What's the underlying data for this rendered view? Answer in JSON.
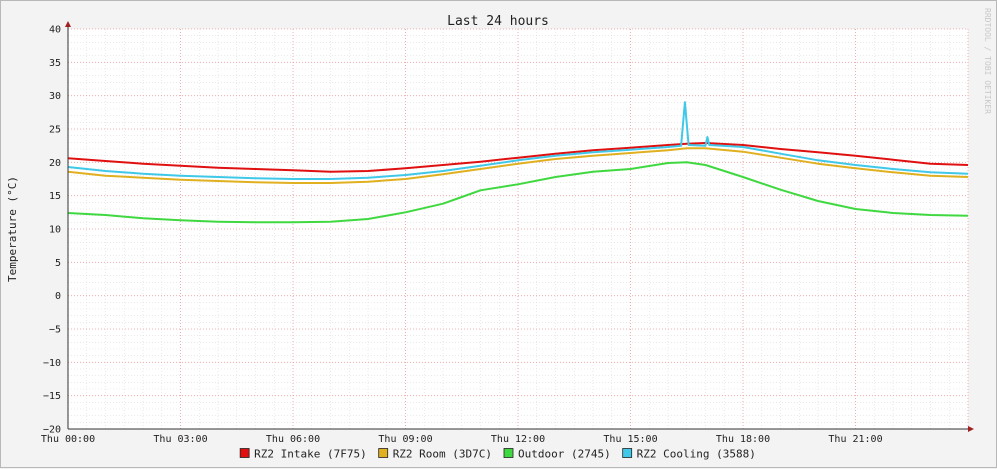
{
  "chart_data": {
    "type": "line",
    "title": "Last 24 hours",
    "xlabel": "",
    "ylabel": "Temperature (°C)",
    "watermark": "RRDTOOL / TOBI OETIKER",
    "xlim": [
      0,
      24
    ],
    "ylim": [
      -20,
      40
    ],
    "y_ticks": [
      40,
      35,
      30,
      25,
      20,
      15,
      10,
      5,
      0,
      -5,
      -10,
      -15,
      -20
    ],
    "x_tick_hours": [
      0,
      3,
      6,
      9,
      12,
      15,
      18,
      21
    ],
    "x_tick_labels": [
      "Thu 00:00",
      "Thu 03:00",
      "Thu 06:00",
      "Thu 09:00",
      "Thu 12:00",
      "Thu 15:00",
      "Thu 18:00",
      "Thu 21:00"
    ],
    "grid": true,
    "legend_position": "bottom",
    "series": [
      {
        "name": "RZ2 Intake (7F75)",
        "color": "#e01010",
        "x": [
          0,
          1,
          2,
          3,
          4,
          5,
          6,
          7,
          8,
          9,
          10,
          11,
          12,
          13,
          14,
          15,
          16,
          16.5,
          17,
          18,
          19,
          20,
          21,
          22,
          23,
          24
        ],
        "y": [
          20.6,
          20.2,
          19.8,
          19.5,
          19.2,
          19.0,
          18.8,
          18.6,
          18.7,
          19.1,
          19.6,
          20.1,
          20.7,
          21.3,
          21.8,
          22.2,
          22.6,
          22.8,
          22.9,
          22.6,
          22.0,
          21.5,
          21.0,
          20.4,
          19.8,
          19.6
        ]
      },
      {
        "name": "RZ2 Room (3D7C)",
        "color": "#e0b020",
        "x": [
          0,
          1,
          2,
          3,
          4,
          5,
          6,
          7,
          8,
          9,
          10,
          11,
          12,
          13,
          14,
          15,
          16,
          16.5,
          17,
          18,
          19,
          20,
          21,
          22,
          23,
          24
        ],
        "y": [
          18.6,
          18.0,
          17.7,
          17.4,
          17.2,
          17.0,
          16.9,
          16.9,
          17.1,
          17.5,
          18.2,
          19.0,
          19.8,
          20.5,
          21.0,
          21.4,
          21.8,
          22.1,
          22.1,
          21.6,
          20.7,
          19.8,
          19.1,
          18.5,
          18.0,
          17.8
        ]
      },
      {
        "name": "Outdoor (2745)",
        "color": "#40d840",
        "x": [
          0,
          1,
          2,
          3,
          4,
          5,
          6,
          7,
          8,
          9,
          10,
          10.5,
          11,
          12,
          13,
          14,
          15,
          16,
          16.5,
          17,
          18,
          19,
          20,
          21,
          22,
          23,
          24
        ],
        "y": [
          12.4,
          12.1,
          11.6,
          11.3,
          11.1,
          11.0,
          11.0,
          11.1,
          11.5,
          12.5,
          13.8,
          14.8,
          15.8,
          16.7,
          17.8,
          18.6,
          19.0,
          19.9,
          20.0,
          19.6,
          17.8,
          15.9,
          14.2,
          13.0,
          12.4,
          12.1,
          12.0
        ]
      },
      {
        "name": "RZ2 Cooling (3588)",
        "color": "#40c8e8",
        "x": [
          0,
          1,
          2,
          3,
          4,
          5,
          6,
          7,
          8,
          9,
          10,
          11,
          12,
          13,
          14,
          15,
          16,
          16.35,
          16.45,
          16.55,
          17,
          17.05,
          17.1,
          18,
          19,
          20,
          21,
          22,
          23,
          24
        ],
        "y": [
          19.3,
          18.7,
          18.3,
          18.0,
          17.8,
          17.6,
          17.5,
          17.5,
          17.7,
          18.1,
          18.7,
          19.5,
          20.3,
          21.0,
          21.5,
          21.9,
          22.3,
          22.5,
          29.0,
          22.6,
          22.5,
          23.8,
          22.6,
          22.3,
          21.3,
          20.3,
          19.6,
          19.0,
          18.5,
          18.3
        ]
      }
    ]
  }
}
